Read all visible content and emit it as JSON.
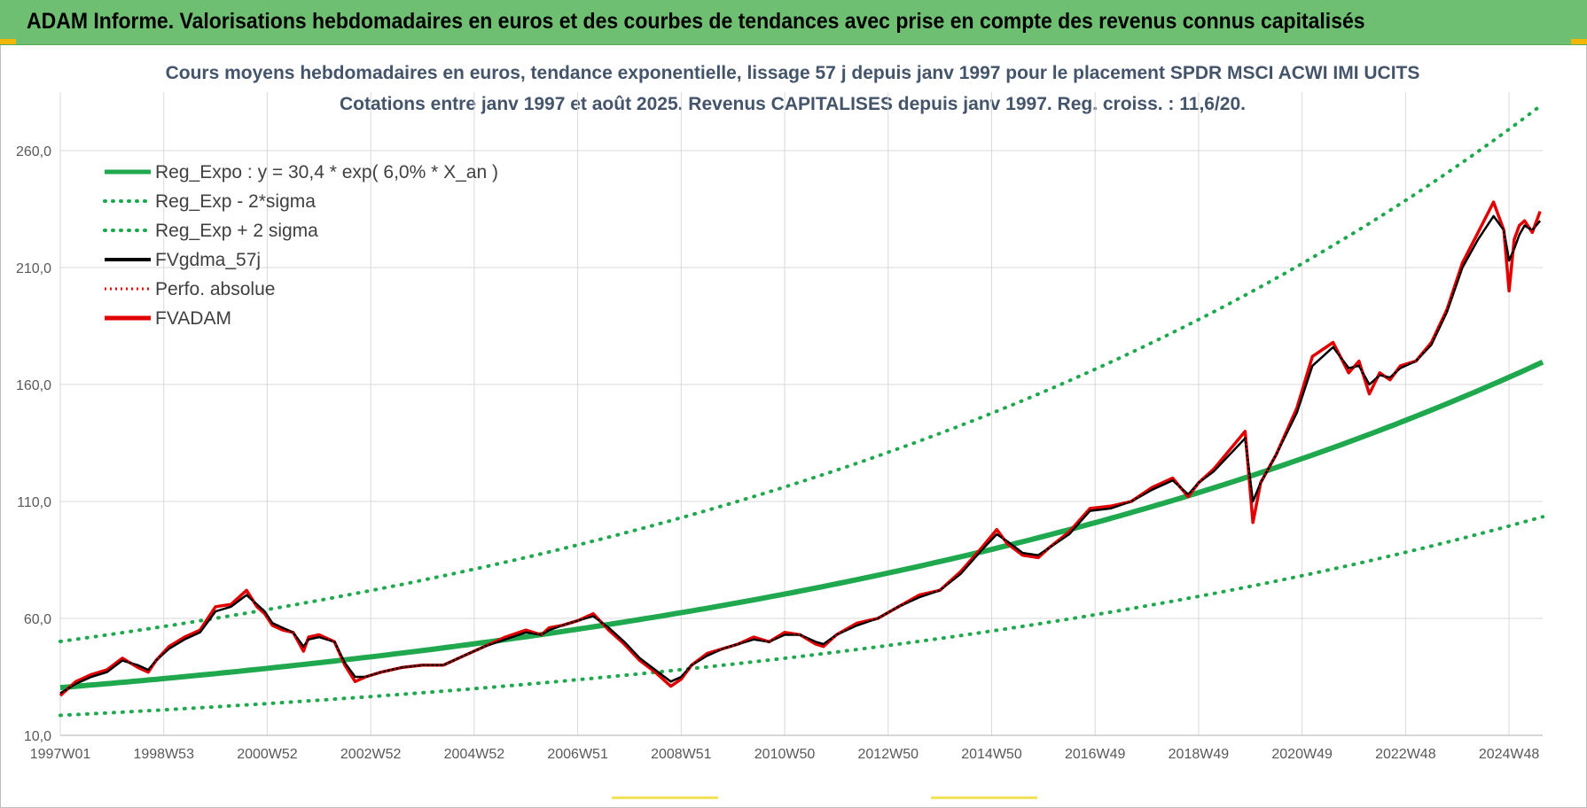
{
  "header": {
    "title": "ADAM Informe. Valorisations hebdomadaires en euros et des courbes de tendances avec prise en compte des revenus connus capitalisés"
  },
  "colors": {
    "banner": "#6fbf73",
    "trend": "#1fa84e",
    "price": "#e00000",
    "smooth": "#000000",
    "grid": "#d9d9d9"
  },
  "chart_data": {
    "type": "line",
    "title_line1": "Cours moyens hebdomadaires en euros, tendance exponentielle, lissage 57 j depuis janv 1997 pour le placement SPDR MSCI ACWI IMI UCITS",
    "title_line2": "Cotations entre janv 1997 et août 2025.  Revenus CAPITALISES  depuis janv 1997. Reg.  croiss. : 11,6/20.",
    "ylim": [
      10,
      285
    ],
    "xlim": [
      1997.0,
      2025.65
    ],
    "y_ticks": [
      10,
      60,
      110,
      160,
      210,
      260
    ],
    "y_tick_labels": [
      "10,0",
      "60,0",
      "110,0",
      "160,0",
      "210,0",
      "260,0"
    ],
    "x_ticks": [
      {
        "label": "1997W01",
        "year": 1997.0
      },
      {
        "label": "1998W53",
        "year": 1999.0
      },
      {
        "label": "2000W52",
        "year": 2001.0
      },
      {
        "label": "2002W52",
        "year": 2003.0
      },
      {
        "label": "2004W52",
        "year": 2005.0
      },
      {
        "label": "2006W51",
        "year": 2007.0
      },
      {
        "label": "2008W51",
        "year": 2009.0
      },
      {
        "label": "2010W50",
        "year": 2011.0
      },
      {
        "label": "2012W50",
        "year": 2013.0
      },
      {
        "label": "2014W50",
        "year": 2015.0
      },
      {
        "label": "2016W49",
        "year": 2017.0
      },
      {
        "label": "2018W49",
        "year": 2019.0
      },
      {
        "label": "2020W49",
        "year": 2021.0
      },
      {
        "label": "2022W48",
        "year": 2023.0
      },
      {
        "label": "2024W48",
        "year": 2025.0
      }
    ],
    "regression": {
      "a": 30.4,
      "rate": 0.06,
      "sigma_low_factor": 0.61,
      "sigma_high_factor": 1.65
    },
    "legend": [
      {
        "label": "Reg_Expo : y = 30,4 * exp( 6,0% *  X_an )",
        "style": "trend"
      },
      {
        "label": "Reg_Exp - 2*sigma",
        "style": "trend-dot"
      },
      {
        "label": "Reg_Exp + 2 sigma",
        "style": "trend-dot"
      },
      {
        "label": "FVgdma_57j",
        "style": "smooth"
      },
      {
        "label": "Perfo. absolue",
        "style": "price-dot"
      },
      {
        "label": "FVADAM",
        "style": "price"
      }
    ],
    "series": [
      {
        "name": "FVADAM",
        "x": [
          1997.0,
          1997.3,
          1997.6,
          1997.9,
          1998.2,
          1998.5,
          1998.7,
          1998.85,
          1999.1,
          1999.4,
          1999.7,
          2000.0,
          2000.3,
          2000.6,
          2000.8,
          2000.95,
          2001.1,
          2001.3,
          2001.5,
          2001.7,
          2001.8,
          2002.0,
          2002.3,
          2002.5,
          2002.7,
          2002.9,
          2003.2,
          2003.6,
          2004.0,
          2004.4,
          2004.8,
          2005.2,
          2005.6,
          2006.0,
          2006.3,
          2006.45,
          2006.7,
          2007.0,
          2007.3,
          2007.6,
          2007.9,
          2008.2,
          2008.5,
          2008.8,
          2009.0,
          2009.2,
          2009.5,
          2009.8,
          2010.1,
          2010.4,
          2010.7,
          2011.0,
          2011.3,
          2011.6,
          2011.75,
          2012.0,
          2012.4,
          2012.8,
          2013.2,
          2013.6,
          2014.0,
          2014.4,
          2014.8,
          2015.1,
          2015.3,
          2015.6,
          2015.9,
          2016.1,
          2016.5,
          2016.9,
          2017.3,
          2017.7,
          2018.1,
          2018.5,
          2018.8,
          2019.0,
          2019.3,
          2019.6,
          2019.9,
          2020.05,
          2020.2,
          2020.5,
          2020.9,
          2021.2,
          2021.6,
          2021.9,
          2022.1,
          2022.3,
          2022.5,
          2022.7,
          2022.9,
          2023.2,
          2023.5,
          2023.8,
          2024.1,
          2024.4,
          2024.7,
          2024.9,
          2025.0,
          2025.1,
          2025.2,
          2025.3,
          2025.45,
          2025.6
        ],
        "y": [
          27,
          33,
          36,
          38,
          43,
          39,
          37,
          42,
          48,
          52,
          55,
          65,
          66,
          72,
          65,
          62,
          57,
          55,
          54,
          46,
          52,
          53,
          50,
          40,
          33,
          35,
          37,
          39,
          40,
          40,
          44,
          48,
          52,
          55,
          53,
          56,
          57,
          59,
          62,
          55,
          49,
          42,
          37,
          31,
          34,
          40,
          45,
          47,
          49,
          52,
          50,
          54,
          53,
          49,
          48,
          53,
          58,
          60,
          65,
          70,
          72,
          80,
          90,
          98,
          92,
          87,
          86,
          90,
          97,
          107,
          108,
          110,
          116,
          120,
          112,
          118,
          124,
          132,
          140,
          101,
          118,
          130,
          150,
          172,
          178,
          165,
          170,
          156,
          165,
          162,
          168,
          170,
          178,
          192,
          212,
          225,
          238,
          226,
          200,
          222,
          228,
          230,
          225,
          234
        ]
      },
      {
        "name": "FVgdma_57j",
        "x": [
          1997.0,
          1997.3,
          1997.6,
          1997.9,
          1998.2,
          1998.5,
          1998.7,
          1998.85,
          1999.1,
          1999.4,
          1999.7,
          2000.0,
          2000.3,
          2000.6,
          2000.8,
          2000.95,
          2001.1,
          2001.3,
          2001.5,
          2001.7,
          2001.8,
          2002.0,
          2002.3,
          2002.5,
          2002.7,
          2002.9,
          2003.2,
          2003.6,
          2004.0,
          2004.4,
          2004.8,
          2005.2,
          2005.6,
          2006.0,
          2006.3,
          2006.45,
          2006.7,
          2007.0,
          2007.3,
          2007.6,
          2007.9,
          2008.2,
          2008.5,
          2008.8,
          2009.0,
          2009.2,
          2009.5,
          2009.8,
          2010.1,
          2010.4,
          2010.7,
          2011.0,
          2011.3,
          2011.6,
          2011.75,
          2012.0,
          2012.4,
          2012.8,
          2013.2,
          2013.6,
          2014.0,
          2014.4,
          2014.8,
          2015.1,
          2015.3,
          2015.6,
          2015.9,
          2016.1,
          2016.5,
          2016.9,
          2017.3,
          2017.7,
          2018.1,
          2018.5,
          2018.8,
          2019.0,
          2019.3,
          2019.6,
          2019.9,
          2020.05,
          2020.2,
          2020.5,
          2020.9,
          2021.2,
          2021.6,
          2021.9,
          2022.1,
          2022.3,
          2022.5,
          2022.7,
          2022.9,
          2023.2,
          2023.5,
          2023.8,
          2024.1,
          2024.4,
          2024.7,
          2024.9,
          2025.0,
          2025.1,
          2025.2,
          2025.3,
          2025.45,
          2025.6
        ],
        "y": [
          28,
          32,
          35,
          37,
          42,
          40,
          38,
          42,
          47,
          51,
          54,
          63,
          65,
          70,
          66,
          63,
          58,
          56,
          54,
          48,
          51,
          52,
          50,
          41,
          35,
          35,
          37,
          39,
          40,
          40,
          44,
          48,
          51,
          54,
          53,
          55,
          57,
          59,
          61,
          56,
          50,
          43,
          38,
          33,
          35,
          40,
          44,
          47,
          49,
          51,
          50,
          53,
          53,
          50,
          49,
          53,
          57,
          60,
          65,
          69,
          72,
          79,
          89,
          96,
          93,
          88,
          87,
          90,
          96,
          106,
          107,
          110,
          115,
          119,
          113,
          118,
          123,
          130,
          137,
          110,
          118,
          130,
          148,
          168,
          176,
          167,
          168,
          160,
          164,
          163,
          167,
          170,
          177,
          191,
          210,
          222,
          232,
          226,
          213,
          218,
          224,
          228,
          226,
          230
        ]
      }
    ]
  }
}
